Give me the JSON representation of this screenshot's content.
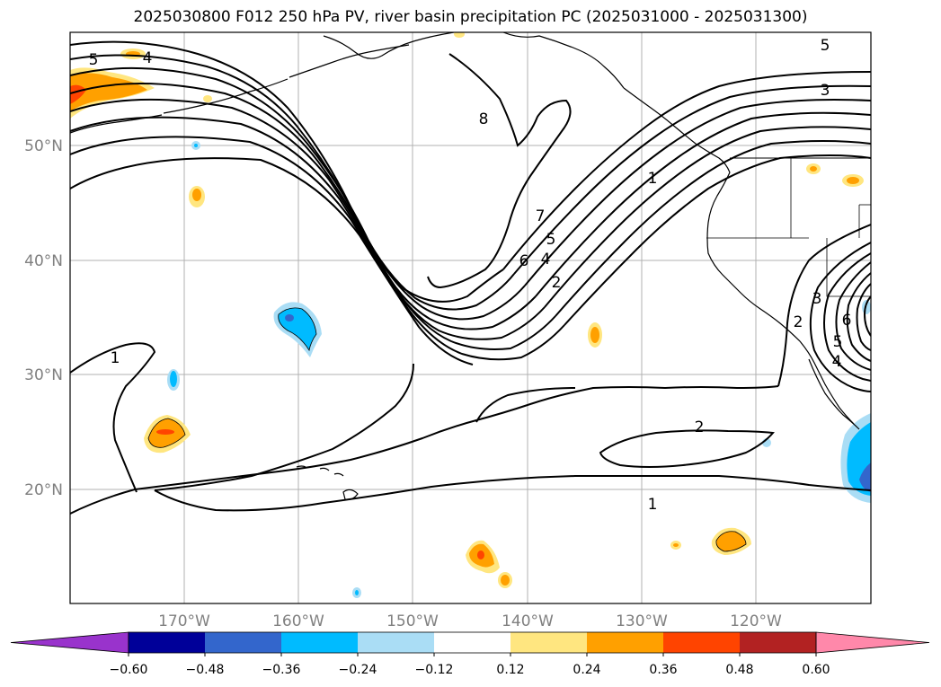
{
  "title": "2025030800 F012 250 hPa PV, river basin precipitation PC (2025031000 - 2025031300)",
  "lat_ticks": [
    "20°N",
    "30°N",
    "40°N",
    "50°N"
  ],
  "lon_ticks": [
    "170°W",
    "160°W",
    "150°W",
    "140°W",
    "130°W",
    "120°W"
  ],
  "colorbar": {
    "tick_labels": [
      "−0.60",
      "−0.48",
      "−0.36",
      "−0.24",
      "−0.12",
      "0.12",
      "0.24",
      "0.36",
      "0.48",
      "0.60"
    ],
    "colors": [
      "#9933cc",
      "#000099",
      "#3366cc",
      "#00bbff",
      "#aaddf5",
      "#ffffff",
      "#ffe680",
      "#ffa000",
      "#ff4400",
      "#b22222",
      "#ff88aa"
    ]
  },
  "contour_labels": [
    "5",
    "4",
    "8",
    "5",
    "3",
    "1",
    "7",
    "5",
    "6",
    "4",
    "2",
    "1",
    "3",
    "2",
    "6",
    "5",
    "4",
    "2",
    "1"
  ],
  "colors": {
    "grid": "#b0b0b0",
    "tick_label": "#808080",
    "contour": "#000000"
  }
}
